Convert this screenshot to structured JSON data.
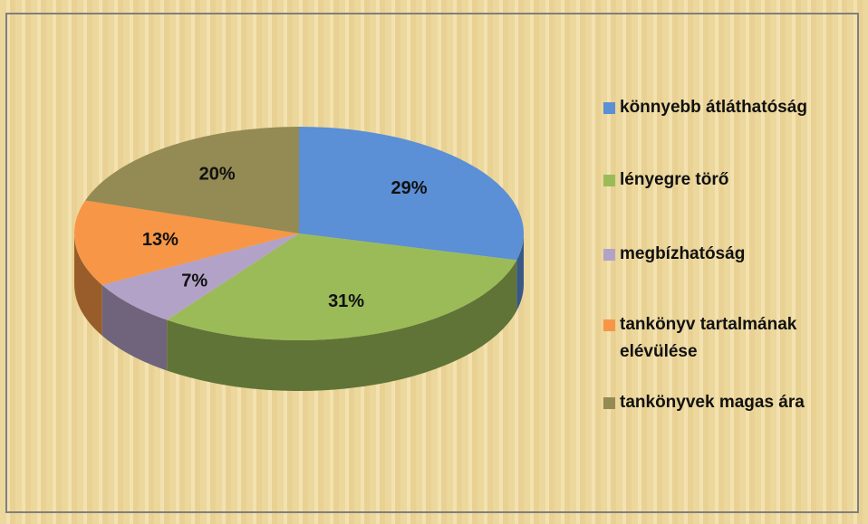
{
  "chart_data": {
    "type": "pie",
    "categories": [
      "könnyebb átláthatóság",
      "lényegre törő",
      "megbízhatóság",
      "tankönyv tartalmának elévülése",
      "tankönyvek magas ára"
    ],
    "values": [
      29,
      31,
      7,
      13,
      20
    ],
    "value_labels": [
      "29%",
      "31%",
      "7%",
      "13%",
      "20%"
    ],
    "colors": [
      "#5b8fd6",
      "#9bbb59",
      "#b3a2c7",
      "#f79646",
      "#948a54"
    ],
    "legend": "right"
  }
}
